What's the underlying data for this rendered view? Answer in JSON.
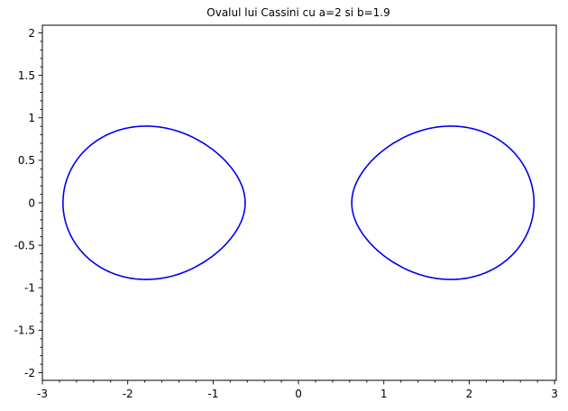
{
  "chart_data": {
    "type": "line",
    "title": "Ovalul lui Cassini cu a=2 si b=1.9",
    "xlabel": "",
    "ylabel": "",
    "xlim": [
      -3,
      3.02
    ],
    "ylim": [
      -2.09,
      2.09
    ],
    "grid": false,
    "x_ticks": [
      -3,
      -2,
      -1,
      0,
      1,
      2,
      3
    ],
    "x_tick_labels": [
      "-3",
      "-2",
      "-1",
      "0",
      "1",
      "2",
      "3"
    ],
    "y_ticks": [
      2,
      1.5,
      1,
      0.5,
      0,
      -0.5,
      -1,
      -1.5,
      -2
    ],
    "y_tick_labels": [
      "2",
      "1.5",
      "1",
      "0.5",
      "0",
      "-0.5",
      "-1",
      "-1.5",
      "-2"
    ],
    "x_minor_step": 0.2,
    "y_minor_step": 0.1,
    "curve": {
      "kind": "cassini-oval",
      "a": 2,
      "b": 1.9,
      "color": "#0000ee"
    }
  }
}
